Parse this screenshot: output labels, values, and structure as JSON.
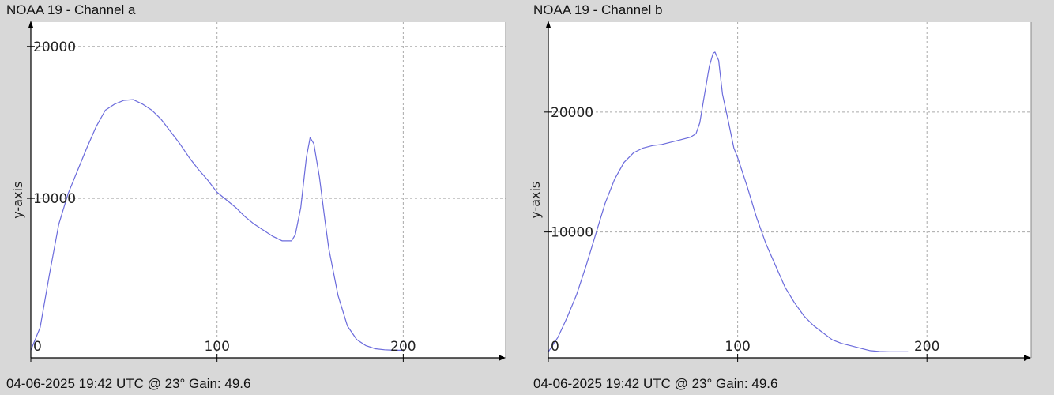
{
  "panels": [
    {
      "title": "NOAA 19 - Channel a",
      "footer": "04-06-2025 19:42 UTC @ 23° Gain: 49.6"
    },
    {
      "title": "NOAA 19 - Channel b",
      "footer": "04-06-2025 19:42 UTC @ 23° Gain: 49.6"
    }
  ],
  "chart_data": [
    {
      "type": "line",
      "title": "NOAA 19 - Channel a",
      "xlabel": "",
      "ylabel": "y-axis",
      "xlim": [
        0,
        255
      ],
      "ylim": [
        -500,
        21600
      ],
      "xticks": [
        0,
        100,
        200
      ],
      "yticks": [
        10000,
        20000
      ],
      "grid": true,
      "line_color": "#6b6bdc",
      "series": [
        {
          "x": [
            0,
            5,
            10,
            15,
            20,
            25,
            30,
            35,
            40,
            45,
            50,
            55,
            60,
            65,
            70,
            75,
            80,
            85,
            90,
            95,
            100,
            105,
            110,
            115,
            120,
            125,
            130,
            135,
            140,
            142,
            145,
            148,
            150,
            152,
            155,
            158,
            160,
            165,
            170,
            175,
            180,
            185,
            190,
            195,
            200
          ],
          "y": [
            0,
            1500,
            5000,
            8300,
            10300,
            11800,
            13300,
            14700,
            15800,
            16200,
            16450,
            16500,
            16200,
            15800,
            15200,
            14400,
            13600,
            12700,
            11900,
            11200,
            10400,
            9900,
            9400,
            8800,
            8300,
            7900,
            7500,
            7200,
            7200,
            7600,
            9400,
            12700,
            14000,
            13600,
            11400,
            8500,
            6700,
            3600,
            1600,
            700,
            300,
            100,
            30,
            0,
            0
          ]
        }
      ]
    },
    {
      "type": "line",
      "title": "NOAA 19 - Channel b",
      "xlabel": "",
      "ylabel": "y-axis",
      "xlim": [
        0,
        255
      ],
      "ylim": [
        -500,
        27500
      ],
      "xticks": [
        0,
        100,
        200
      ],
      "yticks": [
        10000,
        20000
      ],
      "grid": true,
      "line_color": "#6b6bdc",
      "series": [
        {
          "x": [
            0,
            5,
            10,
            15,
            20,
            25,
            30,
            35,
            40,
            45,
            50,
            55,
            60,
            65,
            70,
            75,
            78,
            80,
            82,
            85,
            87,
            88,
            90,
            92,
            95,
            98,
            100,
            105,
            110,
            115,
            120,
            125,
            130,
            135,
            140,
            145,
            150,
            155,
            160,
            165,
            170,
            175,
            180,
            185,
            190
          ],
          "y": [
            0,
            1200,
            2900,
            4800,
            7200,
            9800,
            12400,
            14400,
            15800,
            16600,
            17000,
            17200,
            17300,
            17500,
            17700,
            17900,
            18200,
            19100,
            21000,
            23800,
            24900,
            25000,
            24300,
            21500,
            19300,
            17000,
            16200,
            13800,
            11200,
            9000,
            7200,
            5400,
            4100,
            3000,
            2200,
            1600,
            1000,
            700,
            500,
            300,
            100,
            30,
            0,
            0,
            0
          ]
        }
      ]
    }
  ]
}
